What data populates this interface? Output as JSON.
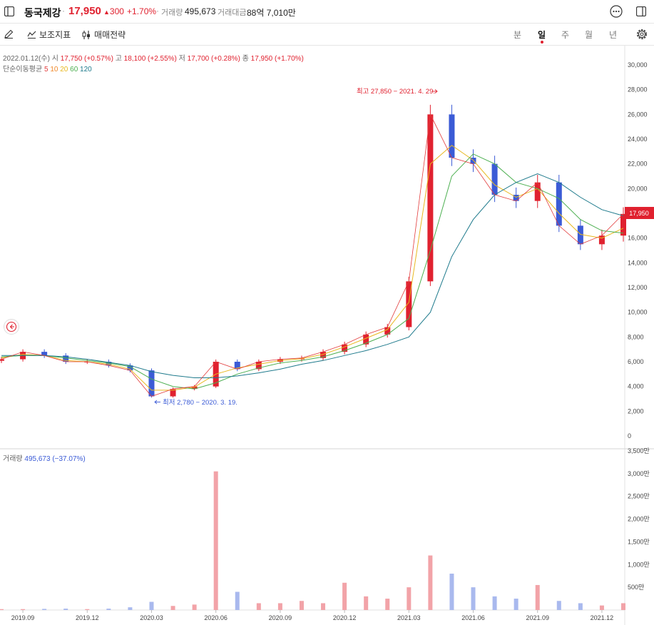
{
  "header": {
    "stock_name": "동국제강",
    "separator": "·",
    "price": "17,950",
    "change": "300",
    "change_pct": "+1.70%",
    "separator2": "·",
    "volume_label": "거래량",
    "volume_value": "495,673",
    "amount_label": "거래대금",
    "amount_value": "88억 7,010만"
  },
  "toolbar": {
    "indicator_label": "보조지표",
    "strategy_label": "매매전략",
    "periods": [
      "분",
      "일",
      "주",
      "월",
      "년"
    ],
    "active_period": "일"
  },
  "ohlc_line": {
    "date": "2022.01.12(수)",
    "open_label": "시",
    "open": "17,750 (+0.57%)",
    "high_label": "고",
    "high": "18,100 (+2.55%)",
    "low_label": "저",
    "low": "17,700 (+0.28%)",
    "close_label": "종",
    "close": "17,950 (+1.70%)"
  },
  "ma_legend": {
    "label": "단순이동평균",
    "items": [
      {
        "text": "5",
        "color": "#e23b3b"
      },
      {
        "text": "10",
        "color": "#f08a2c"
      },
      {
        "text": "20",
        "color": "#e8b820"
      },
      {
        "text": "60",
        "color": "#4caf50"
      },
      {
        "text": "120",
        "color": "#1e7a8c"
      }
    ]
  },
  "volume_legend": {
    "label": "거래량",
    "value": "495,673 (−37.07%)"
  },
  "annotations": {
    "high": "최고 27,850 − 2021. 4. 29.",
    "low": "최저 2,780 − 2020. 3. 19.",
    "last_price": "17,950"
  },
  "colors": {
    "up": "#e0212f",
    "down": "#3b5bd6",
    "ma5": "#e23b3b",
    "ma10": "#f08a2c",
    "ma20": "#e8b820",
    "ma60": "#4caf50",
    "ma120": "#1e7a8c"
  },
  "chart_data": [
    {
      "type": "line",
      "x_ticks": [
        "2019.09",
        "2019.12",
        "2020.03",
        "2020.06",
        "2020.09",
        "2020.12",
        "2021.03",
        "2021.06",
        "2021.09",
        "2021.12"
      ],
      "y_ticks": [
        "0",
        "2,000",
        "4,000",
        "6,000",
        "8,000",
        "10,000",
        "12,000",
        "14,000",
        "16,000",
        "18,000",
        "20,000",
        "22,000",
        "24,000",
        "26,000",
        "28,000",
        "30,000"
      ],
      "ylim": [
        0,
        30000
      ],
      "x_months": [
        "2019.08",
        "2019.09",
        "2019.10",
        "2019.11",
        "2019.12",
        "2020.01",
        "2020.02",
        "2020.03",
        "2020.04",
        "2020.05",
        "2020.06",
        "2020.07",
        "2020.08",
        "2020.09",
        "2020.10",
        "2020.11",
        "2020.12",
        "2021.01",
        "2021.02",
        "2021.03",
        "2021.04",
        "2021.05",
        "2021.06",
        "2021.07",
        "2021.08",
        "2021.09",
        "2021.10",
        "2021.11",
        "2021.12",
        "2022.01"
      ],
      "series": [
        {
          "key": "close",
          "values": [
            6200,
            6800,
            6500,
            6000,
            6000,
            5700,
            5300,
            3200,
            3800,
            4000,
            6000,
            5400,
            6000,
            6200,
            6300,
            6800,
            7400,
            8200,
            8800,
            12500,
            26000,
            22500,
            22000,
            19500,
            19000,
            20500,
            17000,
            15500,
            16200,
            17950
          ]
        },
        {
          "key": "ma20",
          "values": [
            6300,
            6600,
            6500,
            6100,
            6000,
            5800,
            5400,
            3700,
            3700,
            3950,
            5000,
            5500,
            5800,
            6100,
            6250,
            6600,
            7200,
            7900,
            8600,
            10800,
            22000,
            23500,
            22300,
            20300,
            19300,
            20000,
            18000,
            16300,
            16000,
            16800
          ]
        },
        {
          "key": "ma60",
          "values": [
            6400,
            6500,
            6500,
            6300,
            6100,
            5900,
            5600,
            4600,
            4000,
            3800,
            4300,
            5000,
            5500,
            5900,
            6100,
            6400,
            6900,
            7500,
            8200,
            9500,
            15000,
            21000,
            22800,
            22000,
            20500,
            20000,
            19200,
            17500,
            16600,
            16400
          ]
        },
        {
          "key": "ma120",
          "values": [
            6500,
            6500,
            6500,
            6400,
            6200,
            5950,
            5700,
            5200,
            4900,
            4700,
            4700,
            4850,
            5100,
            5400,
            5800,
            6100,
            6500,
            6900,
            7400,
            8000,
            10000,
            14500,
            17500,
            19500,
            20500,
            21200,
            20500,
            19300,
            18300,
            17800
          ]
        }
      ]
    },
    {
      "type": "bar",
      "title": "",
      "y_ticks": [
        "500만",
        "1,000만",
        "1,500만",
        "2,000만",
        "2,500만",
        "3,000만",
        "3,500만"
      ],
      "ylim": [
        0,
        35000000
      ],
      "x_months": [
        "2019.08",
        "2019.09",
        "2019.10",
        "2019.11",
        "2019.12",
        "2020.01",
        "2020.02",
        "2020.03",
        "2020.04",
        "2020.05",
        "2020.06",
        "2020.07",
        "2020.08",
        "2020.09",
        "2020.10",
        "2020.11",
        "2020.12",
        "2021.01",
        "2021.02",
        "2021.03",
        "2021.04",
        "2021.05",
        "2021.06",
        "2021.07",
        "2021.08",
        "2021.09",
        "2021.10",
        "2021.11",
        "2021.12",
        "2022.01"
      ],
      "values": [
        200000,
        200000,
        250000,
        300000,
        200000,
        300000,
        600000,
        1800000,
        900000,
        1200000,
        30500000,
        4000000,
        1500000,
        1500000,
        2000000,
        1500000,
        6000000,
        3000000,
        2500000,
        5000000,
        12000000,
        8000000,
        5000000,
        3000000,
        2500000,
        5500000,
        2000000,
        1500000,
        1000000,
        1500000
      ]
    }
  ]
}
